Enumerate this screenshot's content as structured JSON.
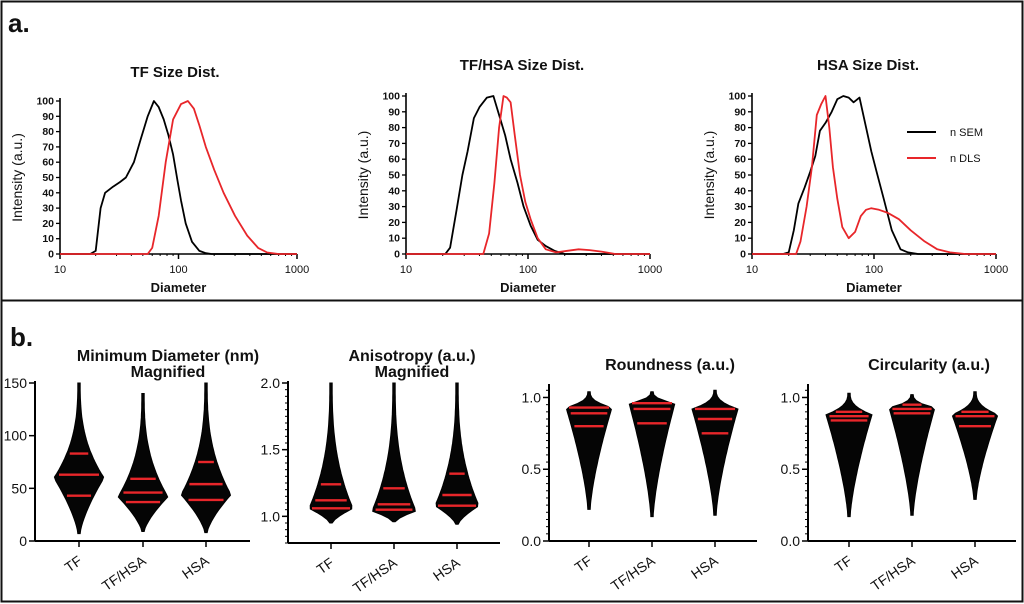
{
  "panels": {
    "a_label": "a.",
    "b_label": "b."
  },
  "chart_data": [
    {
      "type": "line",
      "panel": "a",
      "title": "TF Size Dist.",
      "xlabel": "Diameter",
      "ylabel": "Intensity (a.u.)",
      "xscale": "log",
      "xlim": [
        10,
        1000
      ],
      "ylim": [
        0,
        100
      ],
      "xticks": [
        "10",
        "100",
        "1000"
      ],
      "yticks": [
        "0",
        "10",
        "20",
        "30",
        "40",
        "50",
        "60",
        "70",
        "80",
        "90",
        "100"
      ],
      "series": [
        {
          "name": "n SEM",
          "color": "#000000",
          "x": [
            10,
            18,
            20,
            22,
            24,
            28,
            32,
            36,
            42,
            48,
            55,
            62,
            68,
            75,
            82,
            90,
            98,
            105,
            115,
            130,
            150,
            170,
            190,
            240,
            1000
          ],
          "y": [
            0,
            0,
            2,
            30,
            40,
            44,
            47,
            50,
            60,
            75,
            90,
            100,
            96,
            88,
            78,
            65,
            48,
            35,
            20,
            8,
            2,
            0.5,
            0,
            0,
            0
          ]
        },
        {
          "name": "n DLS",
          "color": "#e8262a",
          "x": [
            10,
            55,
            60,
            68,
            78,
            90,
            105,
            120,
            135,
            150,
            170,
            200,
            240,
            300,
            380,
            470,
            560,
            700,
            1000
          ],
          "y": [
            0,
            0,
            4,
            25,
            60,
            88,
            98,
            100,
            95,
            84,
            70,
            55,
            40,
            25,
            12,
            4,
            1,
            0,
            0
          ]
        }
      ],
      "legend": null
    },
    {
      "type": "line",
      "panel": "a",
      "title": "TF/HSA Size Dist.",
      "xlabel": "Diameter",
      "ylabel": "Intensity (a.u.)",
      "xscale": "log",
      "xlim": [
        10,
        1000
      ],
      "ylim": [
        0,
        100
      ],
      "xticks": [
        "10",
        "100",
        "1000"
      ],
      "yticks": [
        "0",
        "10",
        "20",
        "30",
        "40",
        "50",
        "60",
        "70",
        "80",
        "90",
        "100"
      ],
      "series": [
        {
          "name": "n SEM",
          "color": "#000000",
          "x": [
            10,
            21,
            23,
            26,
            29,
            32,
            36,
            40,
            46,
            52,
            58,
            65,
            72,
            82,
            92,
            105,
            120,
            140,
            165,
            200,
            1000
          ],
          "y": [
            0,
            0,
            4,
            28,
            50,
            65,
            86,
            93,
            99,
            100,
            88,
            75,
            60,
            45,
            30,
            18,
            9,
            5,
            2,
            0,
            0
          ]
        },
        {
          "name": "n DLS",
          "color": "#e8262a",
          "x": [
            10,
            43,
            48,
            53,
            58,
            63,
            67,
            72,
            78,
            86,
            95,
            105,
            120,
            140,
            170,
            210,
            260,
            320,
            400,
            520,
            1000
          ],
          "y": [
            0,
            0,
            13,
            45,
            80,
            100,
            99,
            96,
            75,
            50,
            33,
            22,
            10,
            3,
            1,
            2,
            3,
            2.5,
            1.5,
            0,
            0
          ]
        }
      ],
      "legend": null
    },
    {
      "type": "line",
      "panel": "a",
      "title": "HSA Size Dist.",
      "xlabel": "Diameter",
      "ylabel": "Intensity (a.u.)",
      "xscale": "log",
      "xlim": [
        10,
        1000
      ],
      "ylim": [
        0,
        100
      ],
      "xticks": [
        "10",
        "100",
        "1000"
      ],
      "yticks": [
        "0",
        "10",
        "20",
        "30",
        "40",
        "50",
        "60",
        "70",
        "80",
        "90",
        "100"
      ],
      "series": [
        {
          "name": "n SEM",
          "color": "#000000",
          "x": [
            10,
            18,
            20,
            22,
            24,
            27,
            30,
            33,
            36,
            40,
            45,
            50,
            56,
            62,
            68,
            76,
            85,
            95,
            105,
            120,
            140,
            165,
            190,
            230,
            1000
          ],
          "y": [
            0,
            0,
            1,
            15,
            32,
            42,
            52,
            62,
            78,
            83,
            90,
            98,
            100,
            99,
            96,
            99,
            82,
            65,
            52,
            35,
            15,
            3,
            1,
            0,
            0
          ]
        },
        {
          "name": "n DLS",
          "color": "#e8262a",
          "x": [
            10,
            23,
            25,
            28,
            31,
            34,
            37,
            40,
            43,
            46,
            50,
            55,
            62,
            70,
            78,
            86,
            95,
            110,
            130,
            160,
            200,
            260,
            330,
            420,
            560,
            1000
          ],
          "y": [
            0,
            0,
            8,
            30,
            55,
            88,
            95,
            100,
            80,
            55,
            35,
            17,
            10,
            14,
            24,
            28,
            29,
            28,
            26,
            22,
            15,
            8,
            3,
            1,
            0,
            0
          ]
        }
      ],
      "legend": {
        "position": "top-right",
        "entries": [
          {
            "label": "n SEM",
            "color": "#000000"
          },
          {
            "label": "n DLS",
            "color": "#e8262a"
          }
        ]
      }
    },
    {
      "type": "violin",
      "panel": "b",
      "title": "Minimum Diameter (nm)",
      "subtitle": "Magnified",
      "ylim": [
        0,
        150
      ],
      "yticks": [
        "0",
        "50",
        "100",
        "150"
      ],
      "minor_ticks": false,
      "categories": [
        "TF",
        "TF/HSA",
        "HSA"
      ],
      "violins": [
        {
          "min": 7,
          "q1": 43,
          "median": 63,
          "q3": 83,
          "max": 150,
          "mode": 60
        },
        {
          "min": 9,
          "q1": 37,
          "median": 46,
          "q3": 59,
          "max": 140,
          "mode": 42
        },
        {
          "min": 8,
          "q1": 39,
          "median": 54,
          "q3": 75,
          "max": 150,
          "mode": 44
        }
      ]
    },
    {
      "type": "violin",
      "panel": "b",
      "title": "Anisotropy (a.u.)",
      "subtitle": "Magnified",
      "ylim": [
        0.8,
        2.0
      ],
      "yticks": [
        "1.0",
        "1.5",
        "2.0"
      ],
      "minor_ticks": true,
      "categories": [
        "TF",
        "TF/HSA",
        "HSA"
      ],
      "violins": [
        {
          "min": 0.95,
          "q1": 1.06,
          "median": 1.12,
          "q3": 1.24,
          "max": 2.0,
          "mode": 1.06
        },
        {
          "min": 0.96,
          "q1": 1.05,
          "median": 1.09,
          "q3": 1.21,
          "max": 2.0,
          "mode": 1.04
        },
        {
          "min": 0.94,
          "q1": 1.08,
          "median": 1.16,
          "q3": 1.32,
          "max": 2.0,
          "mode": 1.08
        }
      ]
    },
    {
      "type": "violin",
      "panel": "b",
      "title": "Roundness (a.u.)",
      "subtitle": "",
      "ylim": [
        0.0,
        1.08
      ],
      "yticks": [
        "0.0",
        "0.5",
        "1.0"
      ],
      "minor_ticks": true,
      "categories": [
        "TF",
        "TF/HSA",
        "HSA"
      ],
      "violins": [
        {
          "min": 0.22,
          "q1": 0.8,
          "median": 0.89,
          "q3": 0.93,
          "max": 1.04,
          "mode": 0.93
        },
        {
          "min": 0.17,
          "q1": 0.82,
          "median": 0.92,
          "q3": 0.96,
          "max": 1.04,
          "mode": 0.96
        },
        {
          "min": 0.18,
          "q1": 0.75,
          "median": 0.85,
          "q3": 0.92,
          "max": 1.05,
          "mode": 0.92
        }
      ]
    },
    {
      "type": "violin",
      "panel": "b",
      "title": "Circularity (a.u.)",
      "subtitle": "",
      "ylim": [
        0.0,
        1.08
      ],
      "yticks": [
        "0.0",
        "0.5",
        "1.0"
      ],
      "minor_ticks": true,
      "categories": [
        "TF",
        "TF/HSA",
        "HSA"
      ],
      "violins": [
        {
          "min": 0.17,
          "q1": 0.84,
          "median": 0.87,
          "q3": 0.9,
          "max": 1.03,
          "mode": 0.88
        },
        {
          "min": 0.18,
          "q1": 0.89,
          "median": 0.92,
          "q3": 0.95,
          "max": 1.02,
          "mode": 0.93
        },
        {
          "min": 0.29,
          "q1": 0.8,
          "median": 0.87,
          "q3": 0.9,
          "max": 1.04,
          "mode": 0.88
        }
      ]
    }
  ]
}
